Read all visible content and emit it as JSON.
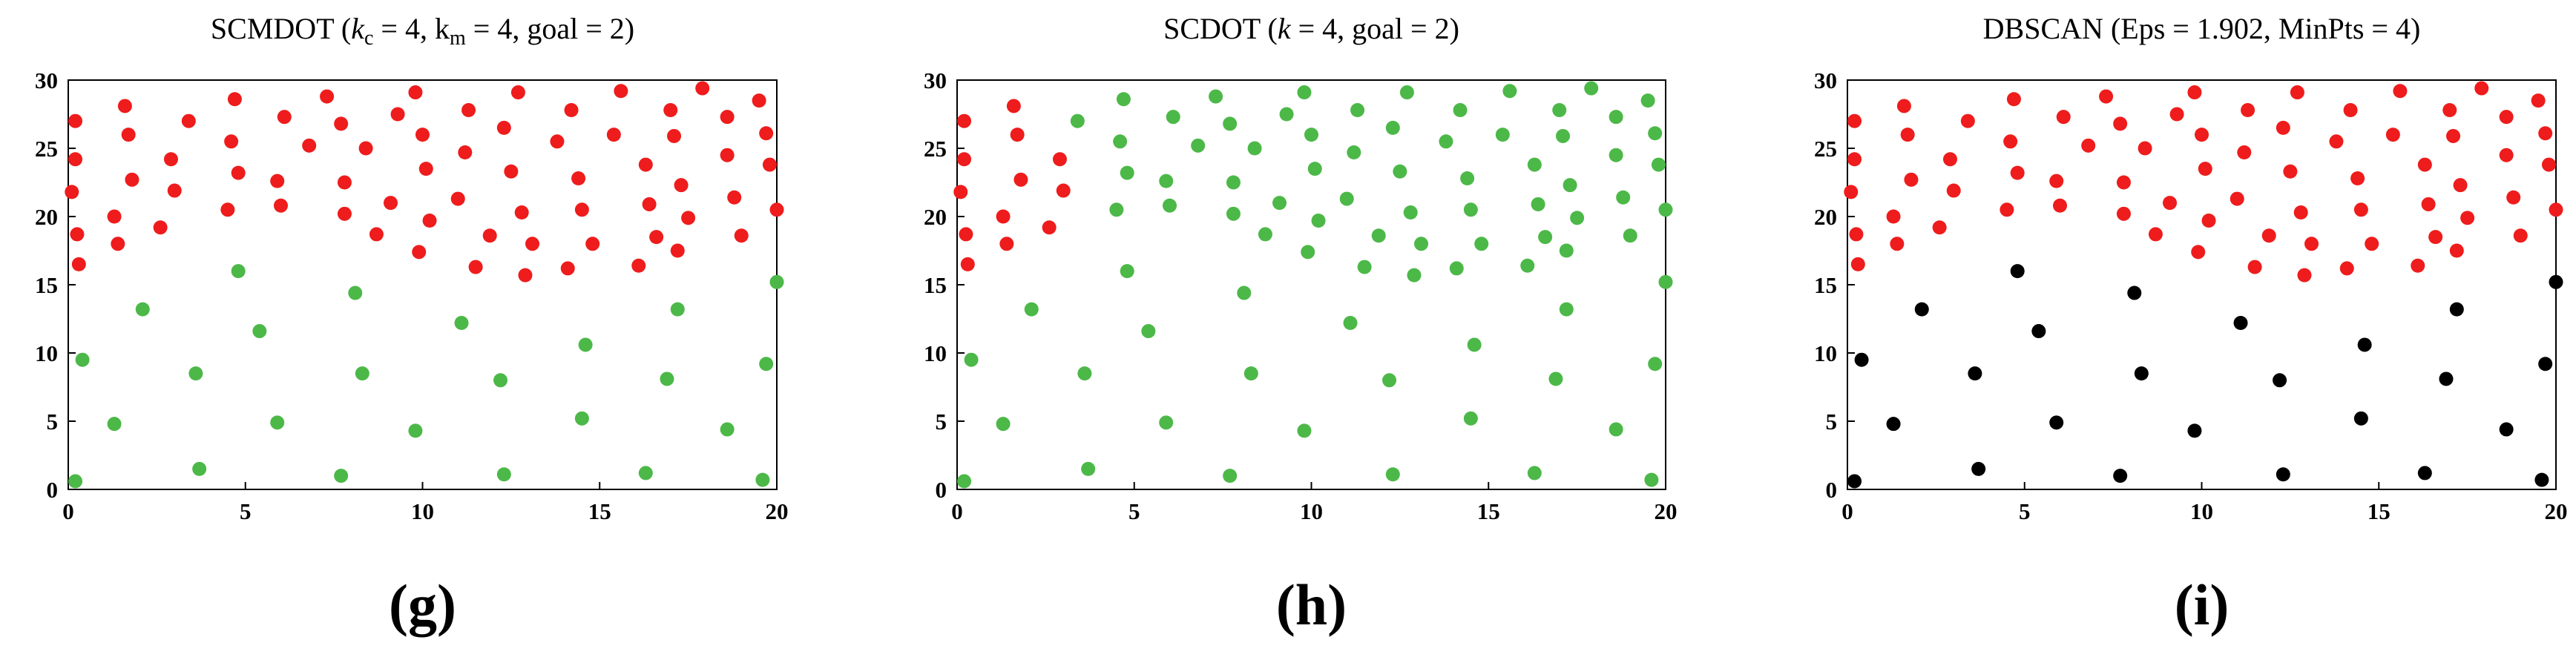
{
  "colors": {
    "cluster_low": "#4cb848",
    "cluster_high": "#ee1c1c",
    "noise": "#000000",
    "axis": "#000000"
  },
  "panels": [
    {
      "title_parts": [
        {
          "t": "SCMDOT (",
          "i": false
        },
        {
          "t": "k",
          "i": true
        },
        {
          "t": "c",
          "i": false,
          "sub": true
        },
        {
          "t": " = 4, k",
          "i": false
        },
        {
          "t": "m",
          "i": false,
          "sub": true
        },
        {
          "t": " = 4, goal = 2)",
          "i": false
        }
      ],
      "label": "(g)",
      "low_color": "cluster_low",
      "high_color": "cluster_high",
      "low_indices": "all_low"
    },
    {
      "title_parts": [
        {
          "t": "SCDOT (",
          "i": false
        },
        {
          "t": "k",
          "i": true
        },
        {
          "t": " = 4, goal = 2)",
          "i": false
        }
      ],
      "label": "(h)",
      "low_color": "cluster_low",
      "high_color": "cluster_low",
      "high_red_indices": [
        0,
        1,
        2,
        3,
        4,
        5,
        6,
        7,
        8,
        9,
        10,
        11,
        12
      ]
    },
    {
      "title_parts": [
        {
          "t": "DBSCAN (Eps = 1.902, MinPts = 4)",
          "i": false
        }
      ],
      "label": "(i)",
      "low_color": "noise",
      "high_color": "cluster_high"
    }
  ],
  "chart_data": {
    "type": "scatter",
    "xlim": [
      0,
      20
    ],
    "ylim": [
      0,
      30
    ],
    "xticks": [
      0,
      5,
      10,
      15,
      20
    ],
    "yticks": [
      0,
      5,
      10,
      15,
      20,
      25,
      30
    ],
    "grid": false,
    "low_points": [
      [
        0.2,
        0.6
      ],
      [
        0.4,
        9.5
      ],
      [
        1.3,
        4.8
      ],
      [
        2.1,
        13.2
      ],
      [
        3.6,
        8.5
      ],
      [
        3.7,
        1.5
      ],
      [
        4.8,
        16.0
      ],
      [
        5.4,
        11.6
      ],
      [
        5.9,
        4.9
      ],
      [
        7.7,
        1.0
      ],
      [
        8.1,
        14.4
      ],
      [
        8.3,
        8.5
      ],
      [
        9.8,
        4.3
      ],
      [
        11.1,
        12.2
      ],
      [
        12.2,
        8.0
      ],
      [
        12.3,
        1.1
      ],
      [
        14.6,
        10.6
      ],
      [
        14.5,
        5.2
      ],
      [
        16.3,
        1.2
      ],
      [
        16.9,
        8.1
      ],
      [
        17.2,
        13.2
      ],
      [
        18.6,
        4.4
      ],
      [
        19.6,
        0.7
      ],
      [
        19.7,
        9.2
      ],
      [
        20.0,
        15.2
      ]
    ],
    "high_points": [
      [
        0.1,
        21.8
      ],
      [
        0.2,
        27.0
      ],
      [
        0.2,
        24.2
      ],
      [
        0.25,
        18.7
      ],
      [
        0.3,
        16.5
      ],
      [
        1.3,
        20.0
      ],
      [
        1.4,
        18.0
      ],
      [
        1.6,
        28.1
      ],
      [
        1.7,
        26.0
      ],
      [
        1.8,
        22.7
      ],
      [
        2.6,
        19.2
      ],
      [
        2.9,
        24.2
      ],
      [
        3.0,
        21.9
      ],
      [
        3.4,
        27.0
      ],
      [
        4.5,
        20.5
      ],
      [
        4.6,
        25.5
      ],
      [
        4.7,
        28.6
      ],
      [
        4.8,
        23.2
      ],
      [
        5.9,
        22.6
      ],
      [
        6.0,
        20.8
      ],
      [
        6.1,
        27.3
      ],
      [
        6.8,
        25.2
      ],
      [
        7.3,
        28.8
      ],
      [
        7.7,
        26.8
      ],
      [
        7.8,
        22.5
      ],
      [
        7.8,
        20.2
      ],
      [
        8.4,
        25.0
      ],
      [
        8.7,
        18.7
      ],
      [
        9.1,
        21.0
      ],
      [
        9.3,
        27.5
      ],
      [
        9.8,
        29.1
      ],
      [
        9.9,
        17.4
      ],
      [
        10.0,
        26.0
      ],
      [
        10.1,
        23.5
      ],
      [
        10.2,
        19.7
      ],
      [
        11.0,
        21.3
      ],
      [
        11.2,
        24.7
      ],
      [
        11.3,
        27.8
      ],
      [
        11.5,
        16.3
      ],
      [
        11.9,
        18.6
      ],
      [
        12.3,
        26.5
      ],
      [
        12.5,
        23.3
      ],
      [
        12.7,
        29.1
      ],
      [
        12.8,
        20.3
      ],
      [
        12.9,
        15.7
      ],
      [
        13.1,
        18.0
      ],
      [
        13.8,
        25.5
      ],
      [
        14.2,
        27.8
      ],
      [
        14.1,
        16.2
      ],
      [
        14.4,
        22.8
      ],
      [
        14.5,
        20.5
      ],
      [
        14.8,
        18.0
      ],
      [
        15.4,
        26.0
      ],
      [
        15.6,
        29.2
      ],
      [
        16.1,
        16.4
      ],
      [
        16.3,
        23.8
      ],
      [
        16.4,
        20.9
      ],
      [
        16.6,
        18.5
      ],
      [
        17.0,
        27.8
      ],
      [
        17.1,
        25.9
      ],
      [
        17.3,
        22.3
      ],
      [
        17.2,
        17.5
      ],
      [
        17.5,
        19.9
      ],
      [
        17.9,
        29.4
      ],
      [
        18.6,
        27.3
      ],
      [
        18.6,
        24.5
      ],
      [
        18.8,
        21.4
      ],
      [
        19.0,
        18.6
      ],
      [
        19.5,
        28.5
      ],
      [
        19.7,
        26.1
      ],
      [
        19.8,
        23.8
      ],
      [
        20.0,
        20.5
      ]
    ]
  }
}
